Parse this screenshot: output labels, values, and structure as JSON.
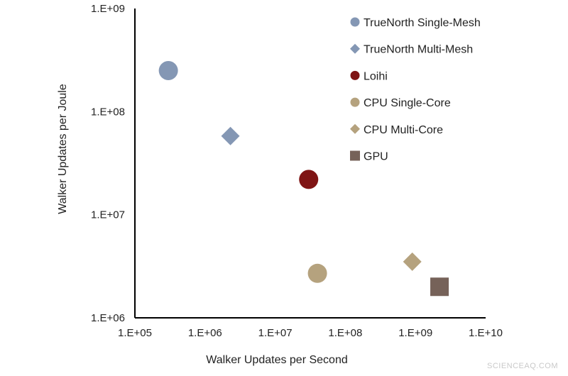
{
  "chart_data": {
    "type": "scatter",
    "xlabel": "Walker Updates per Second",
    "ylabel": "Walker Updates per Joule",
    "x_scale": "log",
    "y_scale": "log",
    "xlim": [
      100000,
      10000000000
    ],
    "ylim": [
      1000000,
      1000000000
    ],
    "x_ticks": [
      "1.E+05",
      "1.E+06",
      "1.E+07",
      "1.E+08",
      "1.E+09",
      "1.E+10"
    ],
    "y_ticks": [
      "1.E+06",
      "1.E+07",
      "1.E+08",
      "1.E+09"
    ],
    "grid": false,
    "legend_position": "top-right",
    "series": [
      {
        "name": "TrueNorth Single-Mesh",
        "marker": "circle",
        "color": "#8497b4",
        "x": [
          300000
        ],
        "y": [
          250000000
        ]
      },
      {
        "name": "TrueNorth Multi-Mesh",
        "marker": "diamond",
        "color": "#8497b4",
        "x": [
          2300000
        ],
        "y": [
          58000000
        ]
      },
      {
        "name": "Loihi",
        "marker": "circle",
        "color": "#7f1414",
        "x": [
          30000000
        ],
        "y": [
          22000000
        ]
      },
      {
        "name": "CPU Single-Core",
        "marker": "circle",
        "color": "#b5a27e",
        "x": [
          40000000
        ],
        "y": [
          2700000
        ]
      },
      {
        "name": "CPU Multi-Core",
        "marker": "diamond",
        "color": "#b5a27e",
        "x": [
          900000000
        ],
        "y": [
          3500000
        ]
      },
      {
        "name": "GPU",
        "marker": "square",
        "color": "#766259",
        "x": [
          2200000000
        ],
        "y": [
          2000000
        ]
      }
    ]
  },
  "watermark": "SCIENCEAQ.COM"
}
